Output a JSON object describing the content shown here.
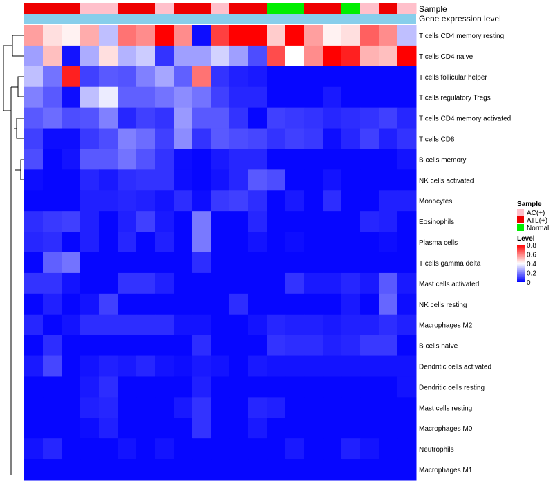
{
  "chart_data": {
    "type": "heatmap",
    "title": "",
    "annotation_labels": {
      "sample": "Sample",
      "gene_expression": "Gene expression level"
    },
    "sample_groups": [
      "ATL(+)",
      "ATL(+)",
      "ATL(+)",
      "AC(+)",
      "AC(+)",
      "ATL(+)",
      "ATL(+)",
      "AC(+)",
      "ATL(+)",
      "ATL(+)",
      "AC(+)",
      "ATL(+)",
      "ATL(+)",
      "Normal",
      "Normal",
      "ATL(+)",
      "ATL(+)",
      "Normal",
      "AC(+)",
      "ATL(+)",
      "AC(+)"
    ],
    "rows": [
      "T cells CD4 memory resting",
      "T cells CD4 naive",
      "T cells follicular helper",
      "T cells regulatory  Tregs",
      "T cells CD4 memory activated",
      "T cells CD8",
      "B cells memory",
      "NK cells activated",
      "Monocytes",
      "Eosinophils",
      "Plasma cells",
      "T cells gamma delta",
      "Mast cells activated",
      "NK cells resting",
      "Macrophages M2",
      "B cells naive",
      "Dendritic cells activated",
      "Dendritic cells resting",
      "Mast cells resting",
      "Macrophages M0",
      "Neutrophils",
      "Macrophages M1"
    ],
    "values": [
      [
        0.55,
        0.45,
        0.42,
        0.53,
        0.3,
        0.62,
        0.58,
        0.8,
        0.58,
        0.02,
        0.7,
        0.8,
        0.8,
        0.48,
        0.8,
        0.55,
        0.42,
        0.45,
        0.65,
        0.58,
        0.3
      ],
      [
        0.25,
        0.5,
        0.03,
        0.27,
        0.45,
        0.28,
        0.32,
        0.08,
        0.25,
        0.25,
        0.33,
        0.25,
        0.12,
        0.68,
        0.4,
        0.58,
        0.8,
        0.75,
        0.52,
        0.5,
        0.8
      ],
      [
        0.3,
        0.18,
        0.75,
        0.1,
        0.14,
        0.13,
        0.2,
        0.26,
        0.15,
        0.62,
        0.08,
        0.05,
        0.04,
        0.01,
        0.01,
        0.01,
        0.01,
        0.01,
        0.01,
        0.01,
        0.01
      ],
      [
        0.2,
        0.14,
        0.02,
        0.3,
        0.37,
        0.15,
        0.15,
        0.18,
        0.22,
        0.18,
        0.1,
        0.06,
        0.06,
        0.01,
        0.01,
        0.01,
        0.04,
        0.01,
        0.01,
        0.01,
        0.01
      ],
      [
        0.14,
        0.17,
        0.12,
        0.13,
        0.2,
        0.06,
        0.1,
        0.08,
        0.24,
        0.14,
        0.14,
        0.08,
        0.01,
        0.1,
        0.09,
        0.08,
        0.06,
        0.07,
        0.08,
        0.1,
        0.06
      ],
      [
        0.1,
        0.02,
        0.02,
        0.09,
        0.12,
        0.2,
        0.17,
        0.1,
        0.22,
        0.08,
        0.14,
        0.12,
        0.11,
        0.08,
        0.1,
        0.09,
        0.02,
        0.06,
        0.1,
        0.05,
        0.08
      ],
      [
        0.12,
        0.01,
        0.03,
        0.14,
        0.14,
        0.18,
        0.13,
        0.08,
        0.02,
        0.01,
        0.04,
        0.06,
        0.06,
        0.01,
        0.01,
        0.01,
        0.01,
        0.01,
        0.01,
        0.01,
        0.03
      ],
      [
        0.02,
        0.01,
        0.01,
        0.06,
        0.04,
        0.07,
        0.08,
        0.08,
        0.02,
        0.01,
        0.03,
        0.06,
        0.14,
        0.12,
        0.01,
        0.01,
        0.03,
        0.01,
        0.01,
        0.01,
        0.01
      ],
      [
        0.01,
        0.01,
        0.01,
        0.05,
        0.05,
        0.06,
        0.05,
        0.03,
        0.07,
        0.02,
        0.09,
        0.1,
        0.07,
        0.01,
        0.04,
        0.01,
        0.07,
        0.01,
        0.01,
        0.05,
        0.05
      ],
      [
        0.07,
        0.09,
        0.1,
        0.05,
        0.01,
        0.05,
        0.1,
        0.04,
        0.01,
        0.19,
        0.01,
        0.01,
        0.06,
        0.01,
        0.01,
        0.01,
        0.01,
        0.01,
        0.06,
        0.05,
        0.01
      ],
      [
        0.06,
        0.07,
        0.01,
        0.05,
        0.01,
        0.06,
        0.01,
        0.05,
        0.01,
        0.19,
        0.01,
        0.01,
        0.03,
        0.01,
        0.02,
        0.01,
        0.01,
        0.01,
        0.01,
        0.02,
        0.01
      ],
      [
        0.01,
        0.15,
        0.18,
        0.01,
        0.01,
        0.01,
        0.01,
        0.01,
        0.01,
        0.07,
        0.01,
        0.01,
        0.01,
        0.01,
        0.01,
        0.01,
        0.01,
        0.01,
        0.01,
        0.01,
        0.01
      ],
      [
        0.08,
        0.08,
        0.03,
        0.01,
        0.01,
        0.08,
        0.08,
        0.05,
        0.01,
        0.01,
        0.01,
        0.01,
        0.01,
        0.01,
        0.08,
        0.04,
        0.04,
        0.06,
        0.04,
        0.14,
        0.04
      ],
      [
        0.01,
        0.05,
        0.01,
        0.03,
        0.1,
        0.01,
        0.01,
        0.01,
        0.01,
        0.01,
        0.01,
        0.07,
        0.01,
        0.01,
        0.01,
        0.01,
        0.01,
        0.04,
        0.01,
        0.16,
        0.02
      ],
      [
        0.06,
        0.01,
        0.03,
        0.07,
        0.07,
        0.07,
        0.07,
        0.07,
        0.03,
        0.03,
        0.01,
        0.01,
        0.03,
        0.06,
        0.05,
        0.05,
        0.04,
        0.05,
        0.05,
        0.07,
        0.05
      ],
      [
        0.01,
        0.07,
        0.01,
        0.01,
        0.01,
        0.01,
        0.01,
        0.01,
        0.01,
        0.07,
        0.01,
        0.01,
        0.01,
        0.08,
        0.07,
        0.07,
        0.05,
        0.06,
        0.09,
        0.09,
        0.01
      ],
      [
        0.04,
        0.11,
        0.01,
        0.03,
        0.05,
        0.04,
        0.06,
        0.03,
        0.02,
        0.04,
        0.03,
        0.01,
        0.04,
        0.03,
        0.03,
        0.03,
        0.03,
        0.03,
        0.03,
        0.03,
        0.03
      ],
      [
        0.01,
        0.01,
        0.01,
        0.04,
        0.07,
        0.01,
        0.01,
        0.01,
        0.01,
        0.05,
        0.01,
        0.01,
        0.01,
        0.01,
        0.01,
        0.01,
        0.01,
        0.01,
        0.01,
        0.01,
        0.03
      ],
      [
        0.01,
        0.01,
        0.01,
        0.05,
        0.06,
        0.01,
        0.01,
        0.01,
        0.04,
        0.08,
        0.01,
        0.01,
        0.06,
        0.05,
        0.01,
        0.01,
        0.01,
        0.01,
        0.01,
        0.01,
        0.01
      ],
      [
        0.01,
        0.01,
        0.01,
        0.02,
        0.05,
        0.01,
        0.01,
        0.01,
        0.01,
        0.08,
        0.01,
        0.01,
        0.04,
        0.01,
        0.01,
        0.01,
        0.01,
        0.01,
        0.01,
        0.01,
        0.01
      ],
      [
        0.03,
        0.06,
        0.01,
        0.01,
        0.01,
        0.03,
        0.01,
        0.03,
        0.01,
        0.01,
        0.01,
        0.01,
        0.01,
        0.01,
        0.04,
        0.01,
        0.01,
        0.05,
        0.03,
        0.01,
        0.01
      ],
      [
        0.01,
        0.01,
        0.01,
        0.01,
        0.01,
        0.01,
        0.01,
        0.01,
        0.01,
        0.01,
        0.01,
        0.01,
        0.01,
        0.01,
        0.01,
        0.01,
        0.01,
        0.01,
        0.01,
        0.01,
        0.01
      ]
    ],
    "color_scale": {
      "min": 0,
      "mid": 0.4,
      "max": 0.8,
      "low_color": "#0000ff",
      "mid_color": "#ffffff",
      "high_color": "#ff0000"
    },
    "group_colors": {
      "AC(+)": "#ffc0cb",
      "ATL(+)": "#ee0000",
      "Normal": "#00ee00"
    },
    "gene_expression_color": "#87ceeb",
    "legend_sample": {
      "title": "Sample",
      "entries": [
        "AC(+)",
        "ATL(+)",
        "Normal"
      ]
    },
    "legend_level": {
      "title": "Level",
      "ticks": [
        "0.8",
        "0.6",
        "0.4",
        "0.2",
        "0"
      ]
    },
    "dendrogram_order": "rows clustered; T cells CD4 memory resting and T cells CD4 naive form a separate top cluster"
  }
}
